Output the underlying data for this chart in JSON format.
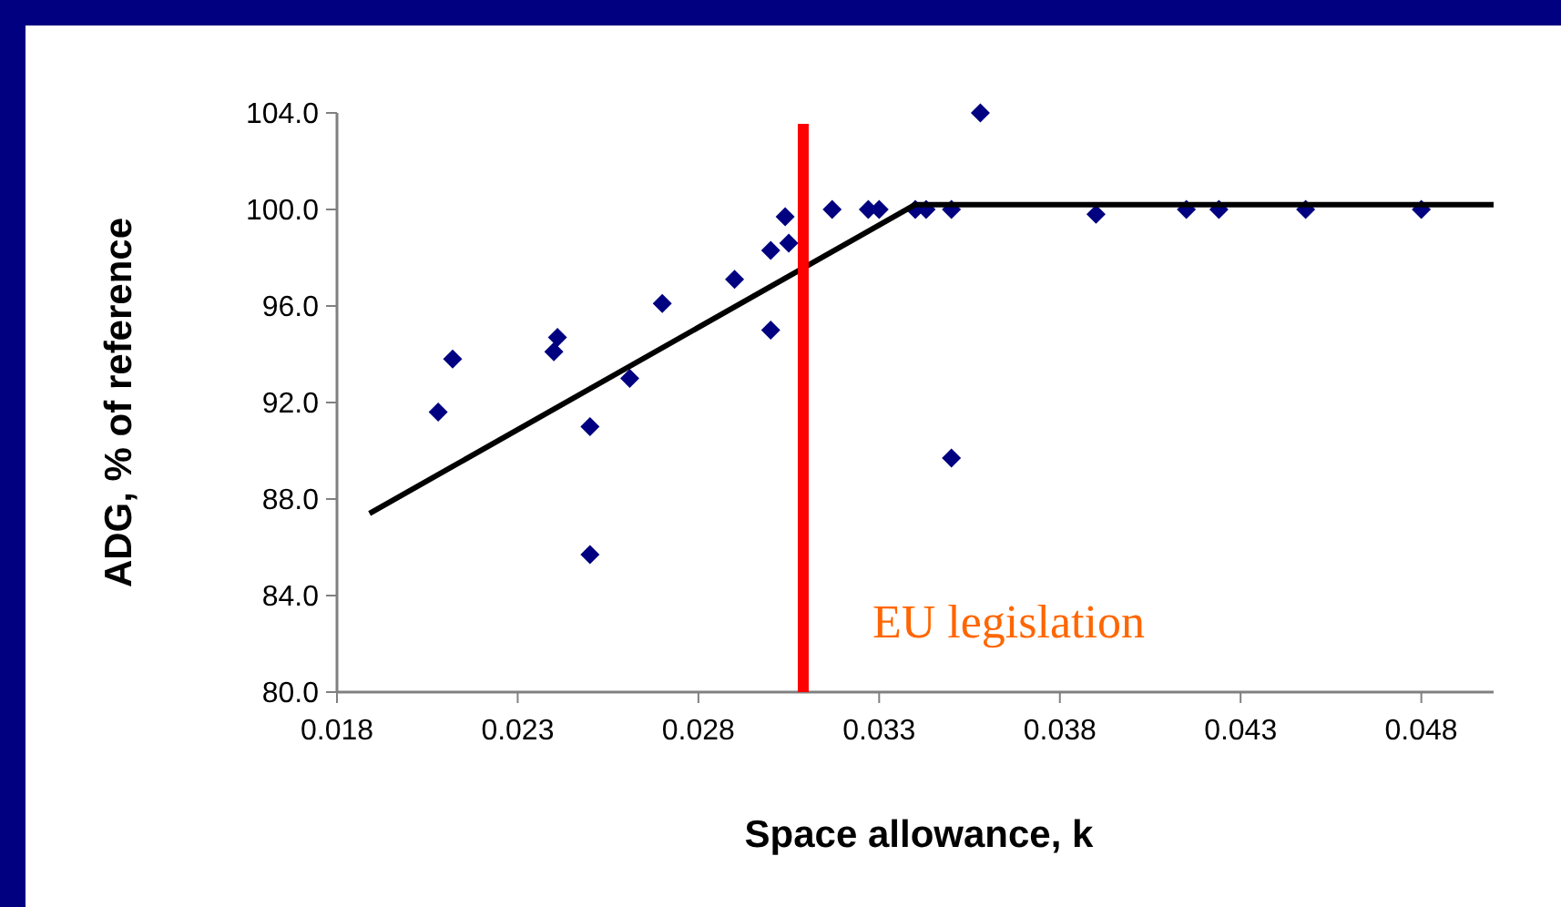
{
  "chart_data": {
    "type": "scatter",
    "xlabel": "Space allowance, k",
    "ylabel": "ADG, % of reference",
    "xlim": [
      0.018,
      0.05
    ],
    "xticks": [
      0.018,
      0.023,
      0.028,
      0.033,
      0.038,
      0.043,
      0.048
    ],
    "ylim": [
      80,
      104
    ],
    "yticks": [
      {
        "value": 80,
        "label": "80.0"
      },
      {
        "value": 84,
        "label": "84.0"
      },
      {
        "value": 88,
        "label": "88.0"
      },
      {
        "value": 92,
        "label": "92.0"
      },
      {
        "value": 96,
        "label": "96.0"
      },
      {
        "value": 100,
        "label": "100.0"
      },
      {
        "value": 104,
        "label": "104.0"
      }
    ],
    "grid": false,
    "marker": "diamond",
    "series": [
      {
        "color": "#000080",
        "x": [
          0.0208,
          0.0212,
          0.0241,
          0.024,
          0.0261,
          0.025,
          0.025,
          0.027,
          0.029,
          0.03,
          0.03,
          0.0305,
          0.0304,
          0.0317,
          0.0327,
          0.033,
          0.034,
          0.0343,
          0.035,
          0.0358,
          0.035,
          0.039,
          0.0415,
          0.0424,
          0.0448,
          0.048
        ],
        "values": [
          91.6,
          93.8,
          94.7,
          94.1,
          93.0,
          91.0,
          85.7,
          96.1,
          97.1,
          95.0,
          98.3,
          98.6,
          99.7,
          100.0,
          100.0,
          100.0,
          100.0,
          100.0,
          100.0,
          104.0,
          89.7,
          99.8,
          100.0,
          100.0,
          100.0,
          100.0
        ]
      },
      {
        "type": "line",
        "color": "#000000",
        "marker": "none",
        "line_style": "solid",
        "x": [
          0.0189,
          0.034,
          0.05
        ],
        "values": [
          87.4,
          100.2,
          100.2
        ]
      }
    ],
    "ref_lines": [
      {
        "axis": "x",
        "value": 0.0309,
        "label": "EU legislation",
        "color": "#ff0000"
      }
    ]
  }
}
